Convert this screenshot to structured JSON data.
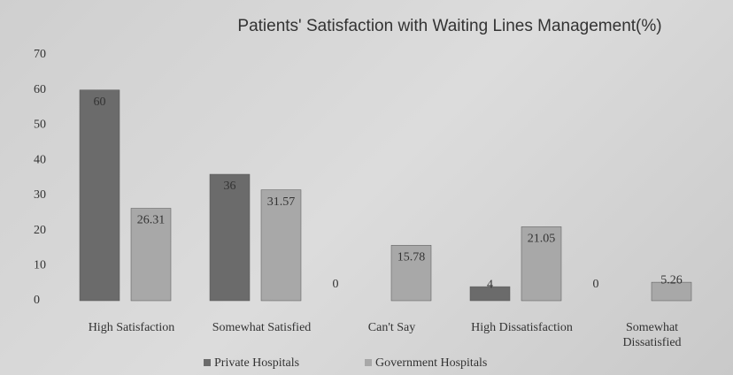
{
  "chart_data": {
    "type": "bar",
    "title": "Patients' Satisfaction with Waiting Lines Management(%)",
    "categories": [
      "High Satisfaction",
      "Somewhat Satisfied",
      "Can't Say",
      "High Dissatisfaction",
      "Somewhat Dissatisfied"
    ],
    "series": [
      {
        "name": "Private Hospitals",
        "color": "#6b6b6b",
        "values": [
          60,
          36,
          0,
          4,
          0
        ]
      },
      {
        "name": "Government Hospitals",
        "color": "#a8a8a8",
        "values": [
          26.31,
          31.57,
          15.78,
          21.05,
          5.26
        ]
      }
    ],
    "ylim": [
      0,
      70
    ],
    "yticks": [
      0,
      10,
      20,
      30,
      40,
      50,
      60,
      70
    ],
    "grid": false,
    "legend": "bottom"
  }
}
